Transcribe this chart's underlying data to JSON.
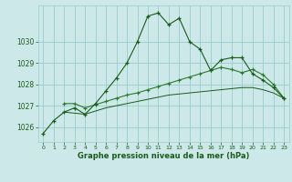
{
  "title": "Graphe pression niveau de la mer (hPa)",
  "bg_color": "#cce8e8",
  "grid_color": "#99cccc",
  "line_color_dark": "#1a5c1a",
  "line_color_mid": "#2d7a2d",
  "x_ticks": [
    0,
    1,
    2,
    3,
    4,
    5,
    6,
    7,
    8,
    9,
    10,
    11,
    12,
    13,
    14,
    15,
    16,
    17,
    18,
    19,
    20,
    21,
    22,
    23
  ],
  "ylim": [
    1025.3,
    1031.7
  ],
  "yticks": [
    1026,
    1027,
    1028,
    1029,
    1030
  ],
  "series1_x": [
    0,
    1,
    2,
    3,
    4,
    5,
    6,
    7,
    8,
    9,
    10,
    11,
    12,
    13,
    14,
    15,
    16,
    17,
    18,
    19,
    20,
    21,
    22,
    23
  ],
  "series1_y": [
    1025.7,
    1026.3,
    1026.7,
    1026.9,
    1026.6,
    1027.1,
    1027.7,
    1028.3,
    1029.0,
    1030.0,
    1031.2,
    1031.35,
    1030.8,
    1031.1,
    1030.0,
    1029.65,
    1028.65,
    1029.15,
    1029.25,
    1029.25,
    1028.5,
    1028.2,
    1027.85,
    1027.35
  ],
  "series2_x": [
    2,
    3,
    4,
    5,
    6,
    7,
    8,
    9,
    10,
    11,
    12,
    13,
    14,
    15,
    16,
    17,
    18,
    19,
    20,
    21,
    22,
    23
  ],
  "series2_y": [
    1027.1,
    1027.1,
    1026.9,
    1027.05,
    1027.2,
    1027.35,
    1027.5,
    1027.6,
    1027.75,
    1027.9,
    1028.05,
    1028.2,
    1028.35,
    1028.5,
    1028.65,
    1028.8,
    1028.7,
    1028.55,
    1028.7,
    1028.45,
    1028.0,
    1027.35
  ],
  "series3_x": [
    2,
    3,
    4,
    5,
    6,
    7,
    8,
    9,
    10,
    11,
    12,
    13,
    14,
    15,
    16,
    17,
    18,
    19,
    20,
    21,
    22,
    23
  ],
  "series3_y": [
    1026.7,
    1026.65,
    1026.6,
    1026.75,
    1026.9,
    1027.0,
    1027.1,
    1027.2,
    1027.3,
    1027.4,
    1027.5,
    1027.55,
    1027.6,
    1027.65,
    1027.7,
    1027.75,
    1027.8,
    1027.85,
    1027.85,
    1027.75,
    1027.6,
    1027.35
  ]
}
